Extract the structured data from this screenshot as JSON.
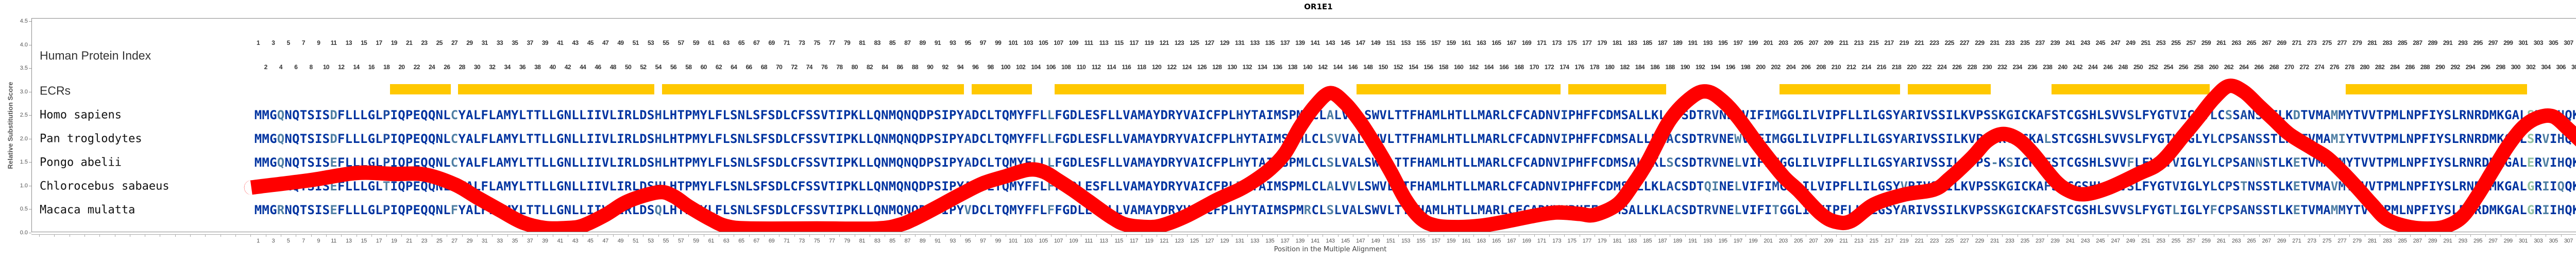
{
  "title": "OR1E1",
  "colors": {
    "curve": "#ff0000",
    "ecr": "#ffc800",
    "conserved": "#0033a0",
    "variable_two": "#4f7fa3",
    "variable_many": "#8fbf9f",
    "index_text": "#333333"
  },
  "tracks": {
    "index_label": "Human Protein Index",
    "ecr_label": "ECRs"
  },
  "alignment": {
    "species": [
      {
        "name": "Homo sapiens",
        "sequence": "MMGQNQTSISDFLLLGLPIQPEQQNLCYALFLAMYLTTLLGNLLIIVLIRLDSHLHTPMYLFLSNLSFSDLCFSSVTIPKLLQNMQNQDPSIPYADCLTQMYFFLLFGDLESFLLVAMAYDRYVAICFPLHYTAIMSPMLCLALVALSWVLTTFHAMLHTLLMARLCFCADNVIPHFFCDMSALLKLAFSDTRVNEWVIFIMGGLILVIPFLLILGSYARIVSSILKVPSSKGICKAFSTCGSHLSVVSLFYGTVIGLYLCSSANSSTLKDTVMAMMYTVVTPMLNPFIYSLRNRDMKGALSRVIHQKKTFFSL"
      },
      {
        "name": "Pan troglodytes",
        "sequence": "MMGQNQTSISDFLLLGLPIQPEQQNLCYALFLAMYLTTLLGNLLIIVLIRLDSHLHTPMYLFLSNLSFSDLCFSSVTIPKLLQNMQNQDPSIPYADCLTQMYFFLLFGDLESFLLVAMAYDRYVAICFPLHYTAIMSPMLCLSVVALSWVLTTFHAMLHTLLMARLCFCADNVIPHFFCDMSALLKLACSDTRVNEWVIFIMGGLILVIPFLLILGSYARIVSSILKVPSSKGICKALSTCGSHLSVVSLFYGTVIGLYLCPSANSSTLKDTVMAMIYTVVTPMLNPFIYSLRNRDMKGALSRVIHQKKTFFSL"
      },
      {
        "name": "Pongo abelii",
        "sequence": "MMGQNQTSISEFLLLGLPIQPEQQNLCYALFLAMYLTTLLGNLLIIVLIRLDSHLHTPMYLFLSNLSFSDLCFSSVTIPKLLQNMQNQDPSIPYADCLTQMYFLLLFGDLESFLLVAMAYDRYVAICFPLHYTAIMSPMLCLSLVALSWVLTTFHAMLHTLLMARLCFCADNVIPHFFCDMSALLKLSCSDTRVNELVIFIMGGLILVIPFLLILGSYARIVSSILKVPS-KSICKAFSTCGSHLSVVFLFYGTVIGLYLCPSANNSTLKETVMAVMYTVVTPMLNPFIYSLRNRDMKGALERVIHQKKTFFSL"
      },
      {
        "name": "Chlorocebus sabaeus",
        "sequence": "MMGRNQTSISEFLLLGLTIQPEQQNLFYALFLAMYLTTLLGNLLIIVLIRLDSHLHTPMYLFLSNLSFSDLCFSSVTIPKLLQNMQNQDPSIPYADCLTQMYFFLFFGDLESFLLVAMAYDRYVAICFPLRYTAIMSPMLCLALVVLSWVLTTFHAMLHTLLMARLCFCADNVIPHFFCDMSALLKLACSDTQINELVIFIMGGLILVIPFLLILGSYVRIVSSILKVPSSKGICKAFSTCGSHLSVVSLFYGTVIGLYLCPSTNSSTLKETVMAVMYTVVTPMLNPFIYSLRNRDMKGALGRIIQQKKTFLSL"
      },
      {
        "name": "Macaca mulatta",
        "sequence": "MMGRNQTSISEFLLLGLPIQPEQQNLFYALFLAMYLTTLLGNLLIIVLIRLDSQLHTPMYLFLSNLSFSDLCFSSVTIPKLLQNMQNQDPSIPYVDCLTQMYFFLFFGDLESFLLVAMAYDRYVAICFPLHYTAIMSPMRCLSLVALSWVLTTFHAMLHTLLMARLCFCADNVVPHFFCDMSALLKLACSDTRVNELVIFITGGLILVIPFLLILGSYARIVSSILKVPSSKGICKAFSTCGSHLSVVSLFYGTLIGLYFCPSANSSTLKETVMAMMYTVVTPMLNPFIYSLRNRDMKGALGRIIHQKKTFLSL"
      }
    ]
  },
  "ecrs": [
    [
      19,
      26
    ],
    [
      28,
      53
    ],
    [
      55,
      94
    ],
    [
      96,
      103
    ],
    [
      107,
      139
    ],
    [
      147,
      173
    ],
    [
      175,
      187
    ],
    [
      203,
      218
    ],
    [
      220,
      230
    ],
    [
      239,
      259
    ],
    [
      278,
      301
    ]
  ],
  "chart_data": {
    "type": "line",
    "title": "OR1E1",
    "xlabel": "Position in the Multiple Alignment",
    "ylabel": "Relative Substitution Score",
    "ylim": [
      0,
      4.5
    ],
    "yticks": [
      "0.0",
      "0.5",
      "1.0",
      "1.5",
      "2.0",
      "2.5",
      "3.0",
      "3.5",
      "4.0",
      "4.5"
    ],
    "xlim": [
      1,
      315
    ],
    "xtick_step": 2,
    "human_index_max": 314,
    "grid": false,
    "series": [
      {
        "x": [
          1,
          8,
          14,
          19,
          23,
          27,
          30,
          33,
          36,
          39,
          42,
          44,
          47,
          50,
          54,
          56,
          58,
          61,
          63,
          66,
          75,
          83,
          86,
          88,
          91,
          94,
          97,
          100,
          103,
          105,
          107,
          109,
          111,
          114,
          116,
          119,
          121,
          124,
          128,
          131,
          133,
          135,
          137,
          139,
          141,
          143,
          145,
          147,
          149,
          151,
          153,
          155,
          157,
          160,
          163,
          166,
          170,
          173,
          176,
          178,
          181,
          183,
          185,
          188,
          191,
          193,
          195,
          197,
          200,
          203,
          205,
          208,
          210,
          212,
          215,
          219,
          223,
          225,
          228,
          230,
          232,
          234,
          236,
          239,
          241,
          243,
          246,
          250,
          253,
          256,
          258,
          260,
          262,
          264,
          266,
          268,
          270,
          273,
          275,
          277,
          279,
          281,
          283,
          286,
          289,
          291,
          293,
          295,
          297,
          299,
          301,
          303,
          305,
          307,
          309,
          311,
          313,
          314
        ],
        "y": [
          0.98,
          1.12,
          1.27,
          1.25,
          1.24,
          1.03,
          0.75,
          0.48,
          0.22,
          0.1,
          0.1,
          0.15,
          0.38,
          0.67,
          0.86,
          0.78,
          0.56,
          0.28,
          0.14,
          0.09,
          0.09,
          0.09,
          0.17,
          0.3,
          0.55,
          0.81,
          1.05,
          1.2,
          1.34,
          1.3,
          1.11,
          0.9,
          0.67,
          0.33,
          0.17,
          0.12,
          0.17,
          0.36,
          0.7,
          0.92,
          1.11,
          1.35,
          1.69,
          2.25,
          2.7,
          2.97,
          2.75,
          2.35,
          1.85,
          1.3,
          0.7,
          0.3,
          0.15,
          0.12,
          0.15,
          0.23,
          0.36,
          0.43,
          0.4,
          0.38,
          0.6,
          1.0,
          1.5,
          2.4,
          2.9,
          3.0,
          2.8,
          2.45,
          1.8,
          1.2,
          0.9,
          0.4,
          0.23,
          0.25,
          0.6,
          0.81,
          0.92,
          1.15,
          1.6,
          1.95,
          2.1,
          2.0,
          1.7,
          1.11,
          0.88,
          0.82,
          0.95,
          1.25,
          1.5,
          2.06,
          2.45,
          2.85,
          3.12,
          3.0,
          2.7,
          2.4,
          2.1,
          1.8,
          1.6,
          1.3,
          0.96,
          0.6,
          0.28,
          0.12,
          0.09,
          0.15,
          0.35,
          0.8,
          1.33,
          1.85,
          2.25,
          2.45,
          2.47,
          2.2,
          1.9,
          1.69,
          1.5,
          1.38
        ]
      }
    ]
  }
}
